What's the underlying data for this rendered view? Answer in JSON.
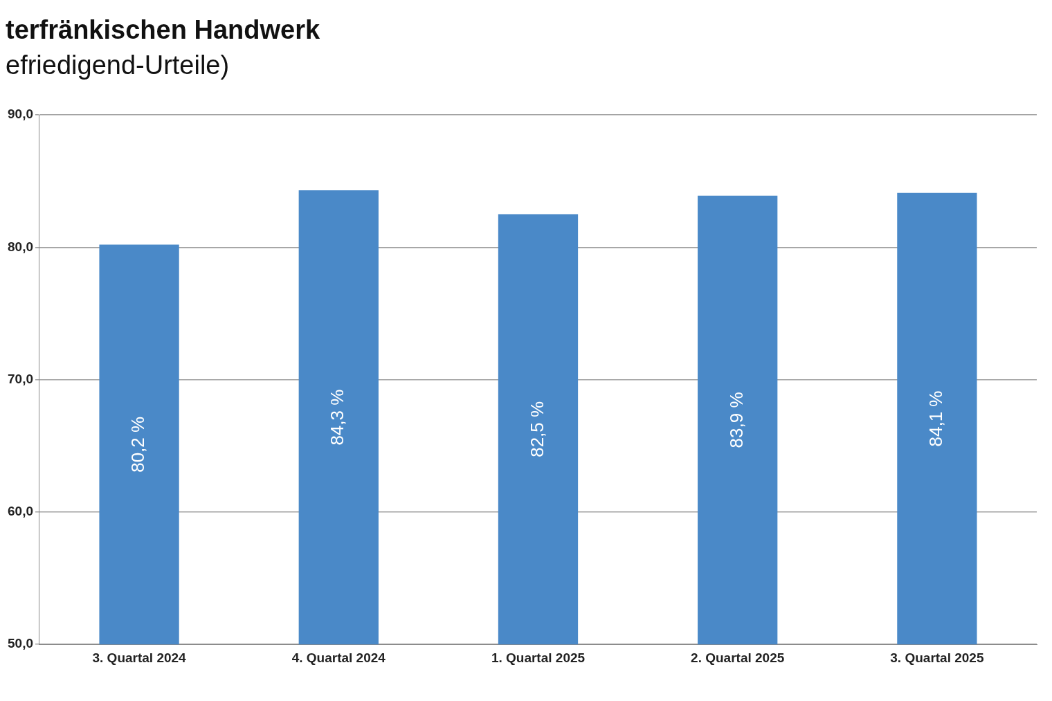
{
  "chart_data": {
    "type": "bar",
    "title": "terfränkischen Handwerk",
    "subtitle": "efriedigend-Urteile)",
    "categories": [
      "3. Quartal 2024",
      "4. Quartal 2024",
      "1. Quartal 2025",
      "2. Quartal 2025",
      "3. Quartal 2025"
    ],
    "values": [
      80.2,
      84.3,
      82.5,
      83.9,
      84.1
    ],
    "value_labels": [
      "80,2 %",
      "84,3 %",
      "82,5 %",
      "83,9 %",
      "84,1 %"
    ],
    "color": "#4a89c8",
    "ylim": [
      50,
      90
    ],
    "yticks": [
      {
        "value": 50,
        "label": "50,0"
      },
      {
        "value": 60,
        "label": "60,0"
      },
      {
        "value": 70,
        "label": "70,0"
      },
      {
        "value": 80,
        "label": "80,0"
      },
      {
        "value": 90,
        "label": "90,0"
      }
    ],
    "grid": "y",
    "legend": false
  }
}
